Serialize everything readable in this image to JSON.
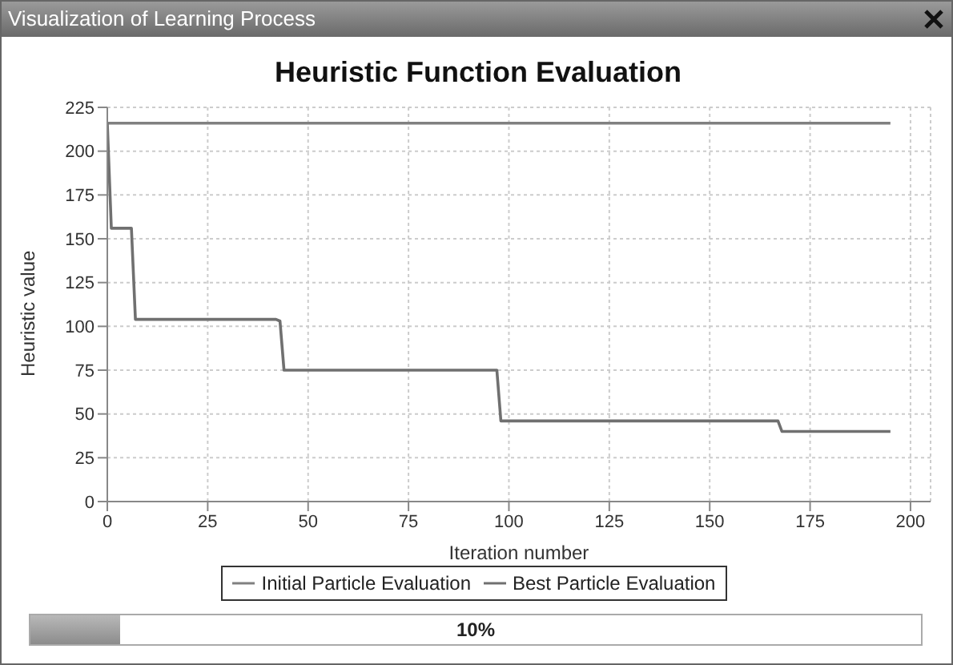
{
  "chart_data": {
    "type": "line",
    "title": "Heuristic Function Evaluation",
    "xlabel": "Iteration number",
    "ylabel": "Heuristic value",
    "annotations": [
      "Visualization of Learning Process",
      "10%"
    ],
    "xlim": [
      0,
      205
    ],
    "xticks": [
      0,
      25,
      50,
      75,
      100,
      125,
      150,
      175,
      200
    ],
    "ylim": [
      0,
      225
    ],
    "yticks": [
      0,
      25,
      50,
      75,
      100,
      125,
      150,
      175,
      200,
      225
    ],
    "grid": true,
    "legend": "bottom",
    "line_style": "solid",
    "marker": "none",
    "series": [
      {
        "name": "Initial Particle Evaluation",
        "color": "#808080",
        "x": [
          0,
          195
        ],
        "values": [
          216,
          216
        ]
      },
      {
        "name": "Best Particle Evaluation",
        "color": "#707070",
        "x": [
          0,
          1,
          6,
          7,
          42,
          43,
          44,
          97,
          98,
          167,
          168,
          195
        ],
        "values": [
          216,
          156,
          156,
          104,
          104,
          103,
          75,
          75,
          46,
          46,
          40,
          40
        ]
      }
    ]
  }
}
